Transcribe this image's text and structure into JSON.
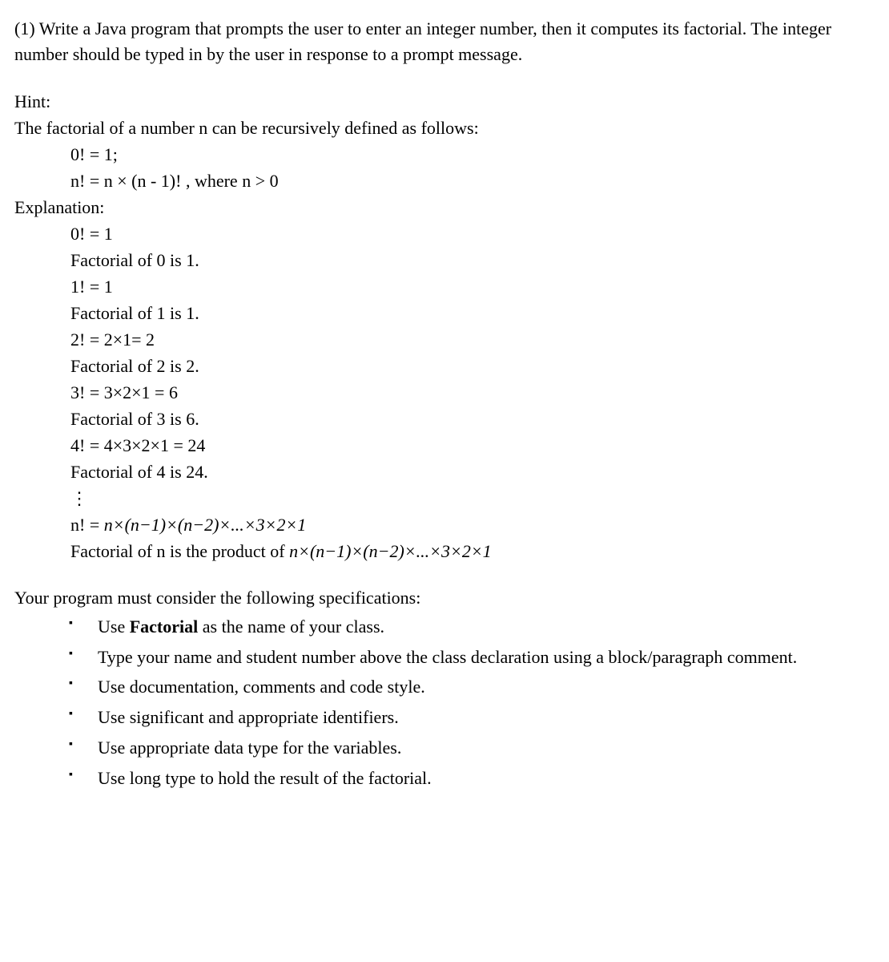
{
  "question": {
    "prompt": "(1) Write a Java program that prompts the user to enter an integer number, then it computes its factorial. The integer number should be typed in by the user in response to a prompt message."
  },
  "hint": {
    "label": "Hint:",
    "intro": "The factorial of a number n can be recursively defined as follows:",
    "lines": [
      "0! = 1;",
      "n! = n × (n - 1)! , where n > 0"
    ]
  },
  "explanation": {
    "label": "Explanation:",
    "items": [
      "0! = 1",
      "Factorial of 0 is 1.",
      "1! = 1",
      "Factorial of 1 is 1.",
      "2! =  2×1= 2",
      "Factorial of 2 is 2.",
      "3! =  3×2×1 = 6",
      "Factorial of 3 is 6.",
      "4! =  4×3×2×1 = 24",
      "Factorial of 4 is 24."
    ],
    "vdots": "⋮",
    "nfact_prefix": "n! =  ",
    "nfact_expr": "n×(n−1)×(n−2)×...×3×2×1",
    "nfact_text_prefix": "Factorial of n is the product of  ",
    "nfact_text_expr": "n×(n−1)×(n−2)×...×3×2×1"
  },
  "specs": {
    "intro": "Your program must consider the following specifications:",
    "items": [
      {
        "before": "Use ",
        "bold": "Factorial",
        "after": " as the name of your class."
      },
      {
        "before": "Type your name and student number above the class declaration using a block/paragraph comment.",
        "bold": "",
        "after": ""
      },
      {
        "before": "Use documentation, comments and code style.",
        "bold": "",
        "after": ""
      },
      {
        "before": "Use significant and appropriate identifiers.",
        "bold": "",
        "after": ""
      },
      {
        "before": "Use appropriate data type for the variables.",
        "bold": "",
        "after": ""
      },
      {
        "before": "Use long type to hold the result of the factorial.",
        "bold": "",
        "after": ""
      }
    ]
  }
}
